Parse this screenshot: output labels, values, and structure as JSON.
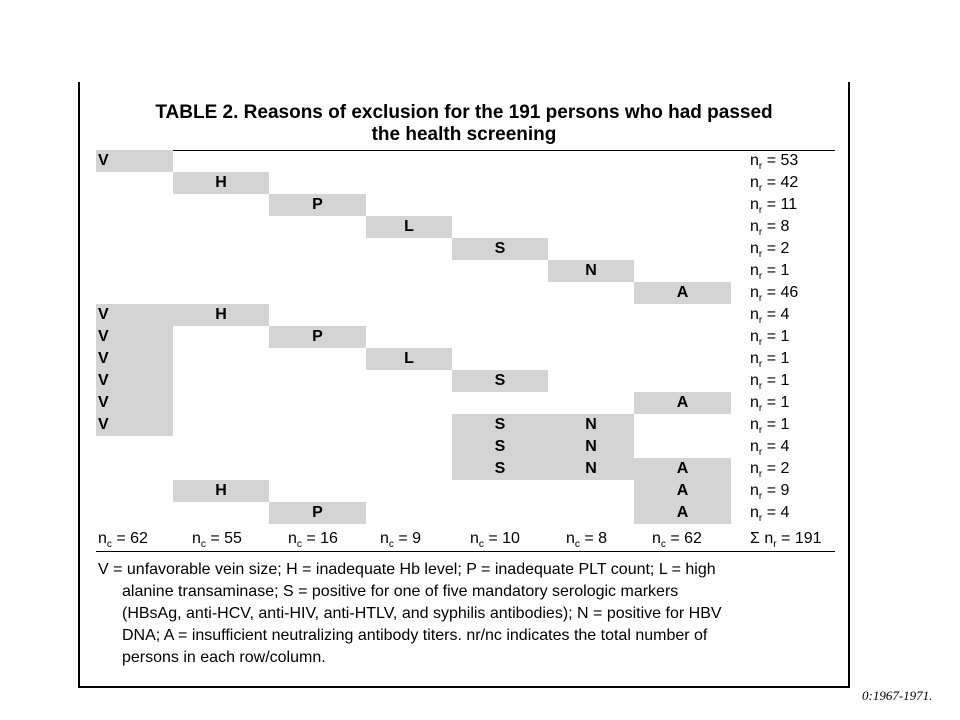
{
  "table": {
    "title_line1": "TABLE 2. Reasons of exclusion for the 191 persons who had passed",
    "title_line2": "the health screening",
    "rows": [
      {
        "cells": [
          "V",
          "",
          "",
          "",
          "",
          "",
          ""
        ],
        "nr": "53"
      },
      {
        "cells": [
          "",
          "H",
          "",
          "",
          "",
          "",
          ""
        ],
        "nr": "42"
      },
      {
        "cells": [
          "",
          "",
          "P",
          "",
          "",
          "",
          ""
        ],
        "nr": "11"
      },
      {
        "cells": [
          "",
          "",
          "",
          "L",
          "",
          "",
          ""
        ],
        "nr": "8"
      },
      {
        "cells": [
          "",
          "",
          "",
          "",
          "S",
          "",
          ""
        ],
        "nr": "2"
      },
      {
        "cells": [
          "",
          "",
          "",
          "",
          "",
          "N",
          ""
        ],
        "nr": "1"
      },
      {
        "cells": [
          "",
          "",
          "",
          "",
          "",
          "",
          "A"
        ],
        "nr": "46"
      },
      {
        "cells": [
          "V",
          "H",
          "",
          "",
          "",
          "",
          ""
        ],
        "nr": "4"
      },
      {
        "cells": [
          "V",
          "",
          "P",
          "",
          "",
          "",
          ""
        ],
        "nr": "1"
      },
      {
        "cells": [
          "V",
          "",
          "",
          "L",
          "",
          "",
          ""
        ],
        "nr": "1"
      },
      {
        "cells": [
          "V",
          "",
          "",
          "",
          "S",
          "",
          ""
        ],
        "nr": "1"
      },
      {
        "cells": [
          "V",
          "",
          "",
          "",
          "",
          "",
          "A"
        ],
        "nr": "1"
      },
      {
        "cells": [
          "V",
          "",
          "",
          "",
          "S",
          "N",
          ""
        ],
        "nr": "1"
      },
      {
        "cells": [
          "",
          "",
          "",
          "",
          "S",
          "N",
          ""
        ],
        "nr": "4"
      },
      {
        "cells": [
          "",
          "",
          "",
          "",
          "S",
          "N",
          "A"
        ],
        "nr": "2"
      },
      {
        "cells": [
          "",
          "H",
          "",
          "",
          "",
          "",
          "A"
        ],
        "nr": "9"
      },
      {
        "cells": [
          "",
          "",
          "P",
          "",
          "",
          "",
          "A"
        ],
        "nr": "4"
      }
    ],
    "nr_prefix": "n",
    "nr_sub": "r",
    "equals": " = ",
    "nc_prefix": "n",
    "nc_sub": "c",
    "column_totals": [
      "62",
      "55",
      "16",
      "9",
      "10",
      "8",
      "62"
    ],
    "grand_total": "Σ n",
    "grand_total_sub": "r",
    "grand_total_value": " = 191",
    "footnote_lines": [
      "V = unfavorable vein size; H = inadequate Hb level; P = inadequate PLT count; L = high",
      "alanine transaminase; S = positive for one of five mandatory serologic markers",
      "(HBsAg, anti-HCV, anti-HIV, anti-HTLV, and syphilis antibodies); N = positive for HBV",
      "DNA; A = insufficient neutralizing antibody titers. nr/nc indicates the total number of",
      "persons in each row/column."
    ]
  },
  "citation": "0:1967-1971."
}
